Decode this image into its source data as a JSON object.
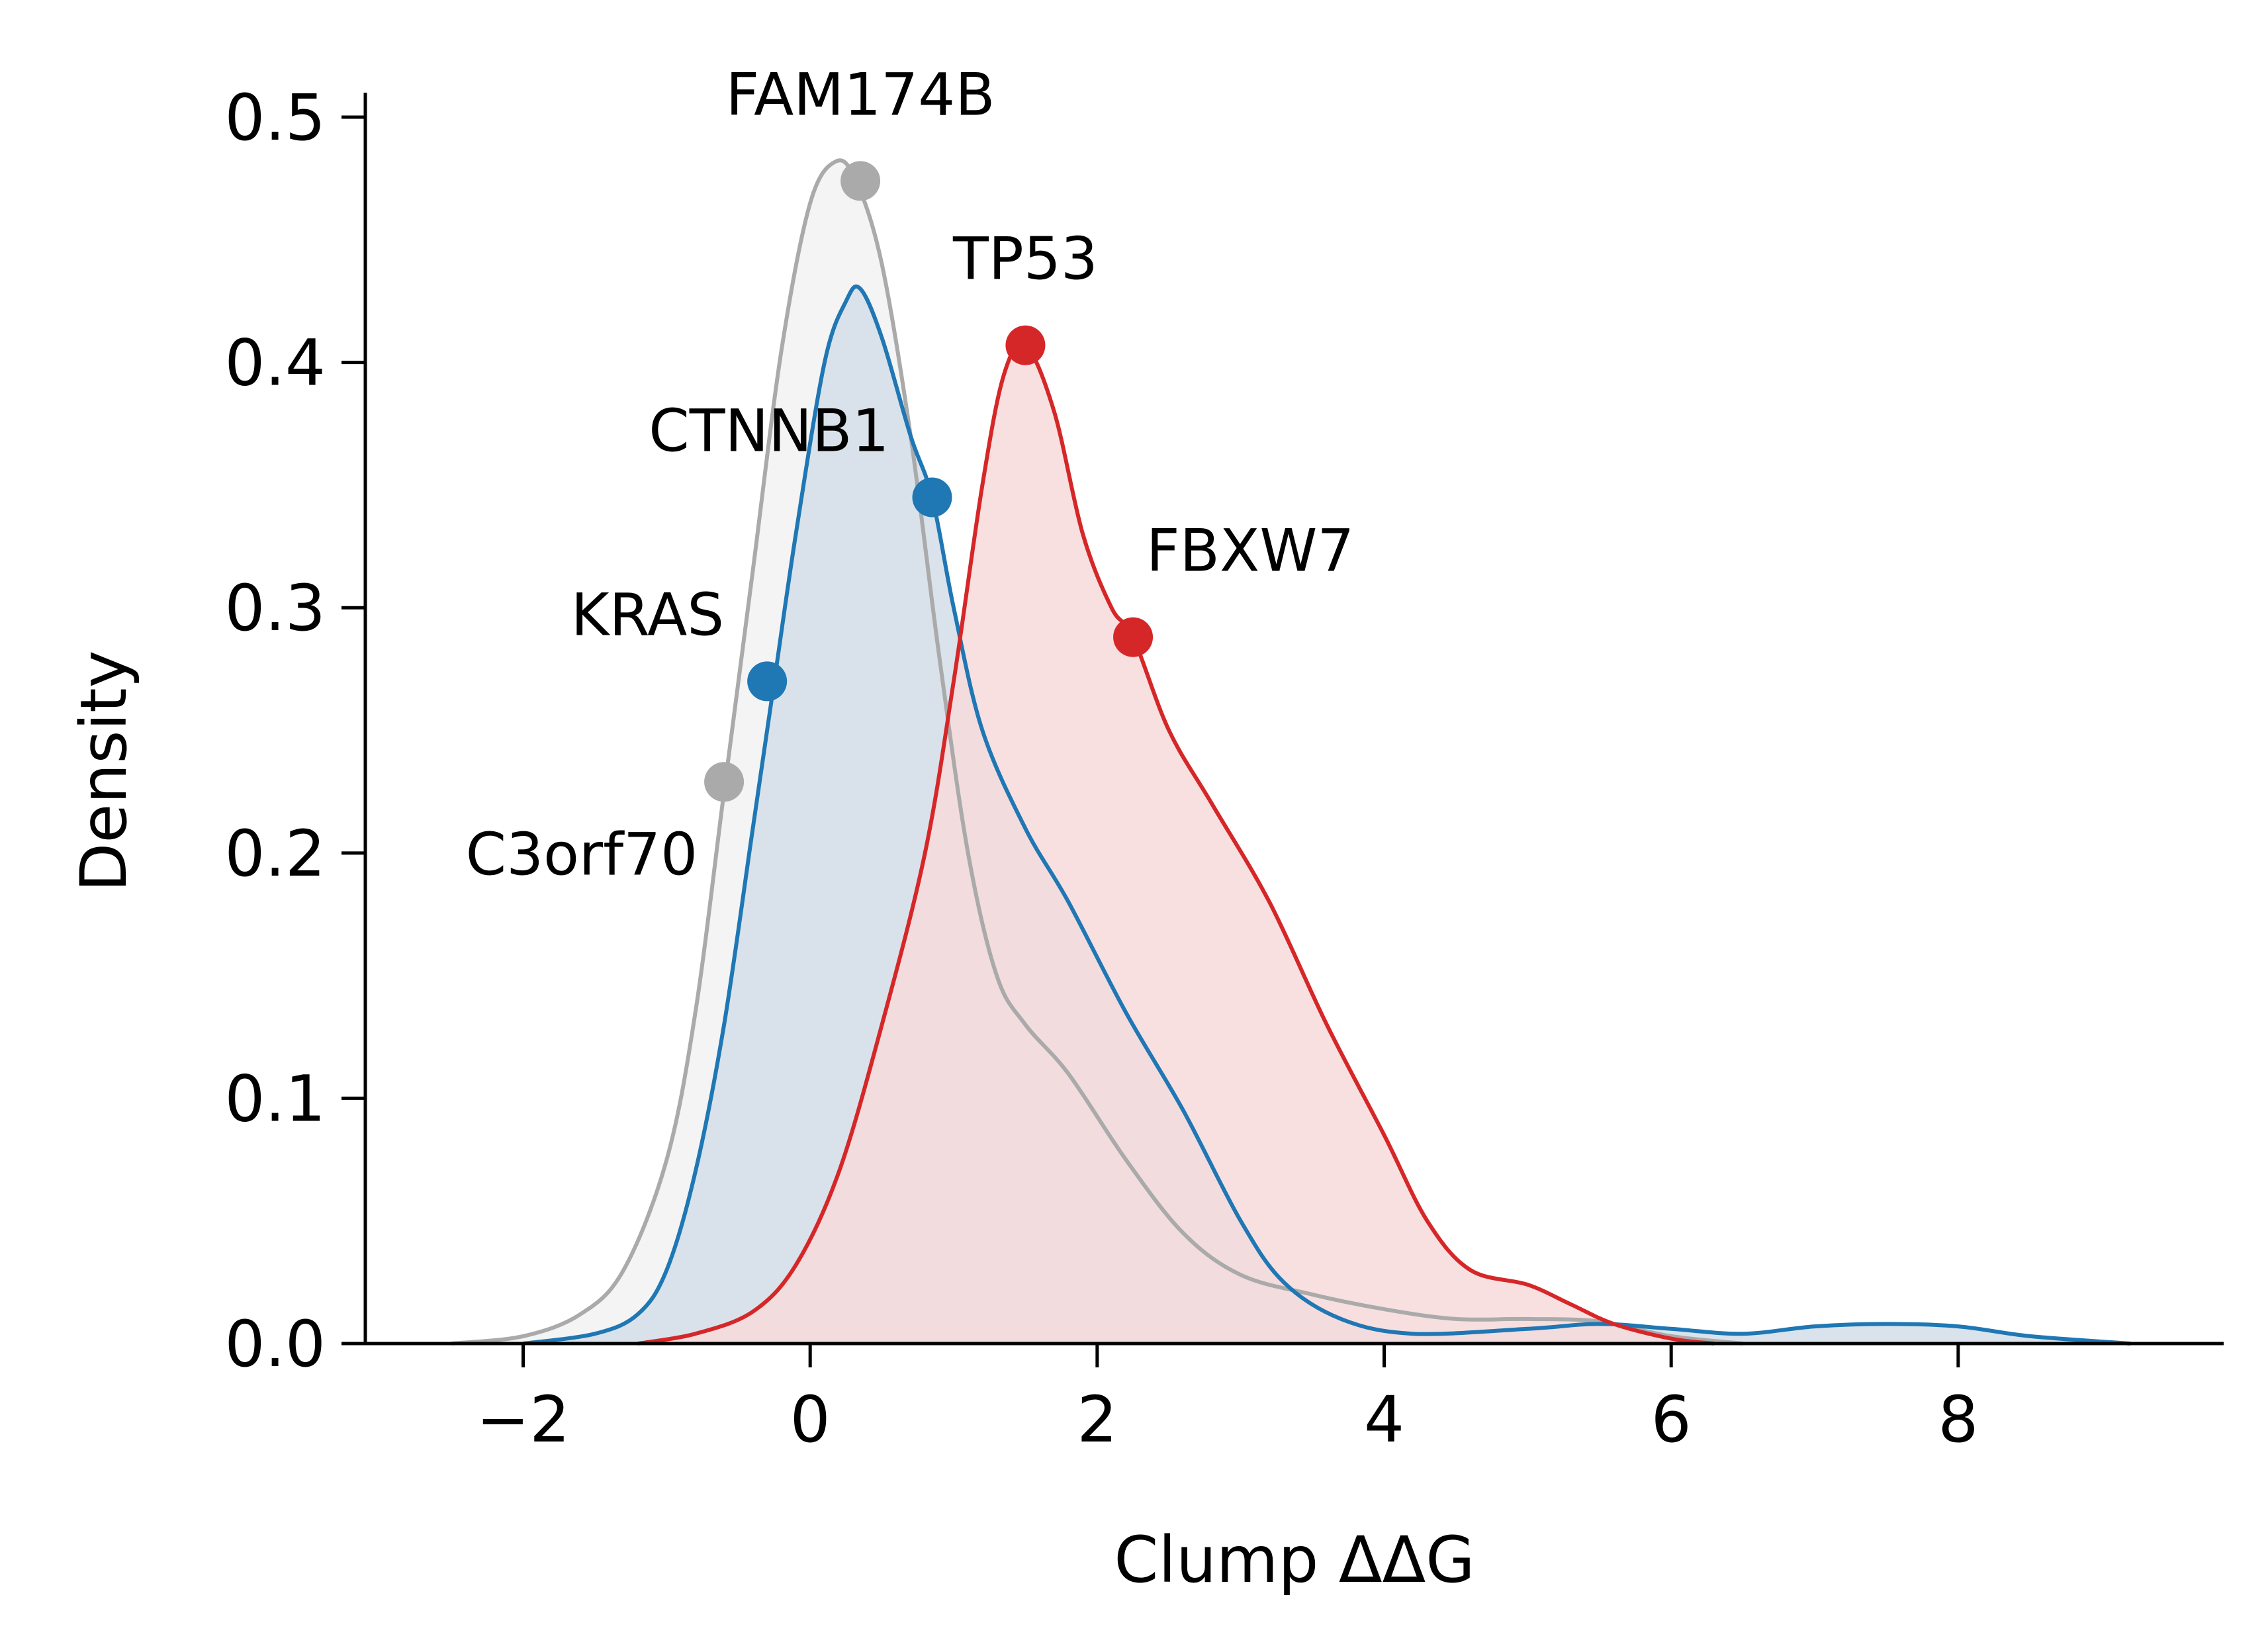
{
  "chart_data": {
    "type": "area",
    "xlabel": "Clump ΔΔG",
    "ylabel": "Density",
    "xlim": [
      -3.1,
      9.85
    ],
    "ylim": [
      0,
      0.51
    ],
    "x_ticks": [
      -2,
      0,
      2,
      4,
      6,
      8
    ],
    "x_tick_labels": [
      "−2",
      "0",
      "2",
      "4",
      "6",
      "8"
    ],
    "y_ticks": [
      0.0,
      0.1,
      0.2,
      0.3,
      0.4,
      0.5
    ],
    "y_tick_labels": [
      "0.0",
      "0.1",
      "0.2",
      "0.3",
      "0.4",
      "0.5"
    ],
    "grid": false,
    "series": [
      {
        "color": "#aaaaaa",
        "fill": "#f2f2f2",
        "points": [
          [
            -2.5,
            0.0
          ],
          [
            -2.0,
            0.003
          ],
          [
            -1.6,
            0.012
          ],
          [
            -1.3,
            0.03
          ],
          [
            -1.0,
            0.075
          ],
          [
            -0.8,
            0.135
          ],
          [
            -0.6,
            0.225
          ],
          [
            -0.4,
            0.315
          ],
          [
            -0.2,
            0.405
          ],
          [
            0.0,
            0.465
          ],
          [
            0.18,
            0.482
          ],
          [
            0.32,
            0.474
          ],
          [
            0.5,
            0.44
          ],
          [
            0.7,
            0.37
          ],
          [
            0.9,
            0.28
          ],
          [
            1.1,
            0.2
          ],
          [
            1.3,
            0.15
          ],
          [
            1.5,
            0.13
          ],
          [
            1.8,
            0.11
          ],
          [
            2.2,
            0.075
          ],
          [
            2.6,
            0.045
          ],
          [
            3.0,
            0.028
          ],
          [
            3.5,
            0.02
          ],
          [
            4.0,
            0.014
          ],
          [
            4.5,
            0.01
          ],
          [
            5.0,
            0.01
          ],
          [
            5.5,
            0.009
          ],
          [
            6.0,
            0.003
          ],
          [
            6.5,
            0.0
          ]
        ]
      },
      {
        "color": "#1f77b4",
        "fill": "#d3dee8",
        "points": [
          [
            -2.0,
            0.0
          ],
          [
            -1.5,
            0.004
          ],
          [
            -1.2,
            0.012
          ],
          [
            -1.0,
            0.03
          ],
          [
            -0.8,
            0.07
          ],
          [
            -0.6,
            0.13
          ],
          [
            -0.4,
            0.21
          ],
          [
            -0.25,
            0.27
          ],
          [
            -0.1,
            0.33
          ],
          [
            0.1,
            0.4
          ],
          [
            0.25,
            0.425
          ],
          [
            0.35,
            0.43
          ],
          [
            0.5,
            0.41
          ],
          [
            0.7,
            0.37
          ],
          [
            0.85,
            0.345
          ],
          [
            1.0,
            0.3
          ],
          [
            1.2,
            0.25
          ],
          [
            1.5,
            0.21
          ],
          [
            1.8,
            0.18
          ],
          [
            2.2,
            0.135
          ],
          [
            2.6,
            0.095
          ],
          [
            3.0,
            0.05
          ],
          [
            3.3,
            0.025
          ],
          [
            3.7,
            0.01
          ],
          [
            4.2,
            0.004
          ],
          [
            5.0,
            0.006
          ],
          [
            5.5,
            0.008
          ],
          [
            6.0,
            0.006
          ],
          [
            6.5,
            0.004
          ],
          [
            7.0,
            0.007
          ],
          [
            7.5,
            0.008
          ],
          [
            8.0,
            0.007
          ],
          [
            8.5,
            0.003
          ],
          [
            9.2,
            0.0
          ]
        ]
      },
      {
        "color": "#d62728",
        "fill": "#f7dadc",
        "points": [
          [
            -1.2,
            0.0
          ],
          [
            -0.8,
            0.004
          ],
          [
            -0.4,
            0.013
          ],
          [
            -0.1,
            0.032
          ],
          [
            0.2,
            0.07
          ],
          [
            0.5,
            0.13
          ],
          [
            0.8,
            0.2
          ],
          [
            1.0,
            0.27
          ],
          [
            1.2,
            0.35
          ],
          [
            1.35,
            0.395
          ],
          [
            1.5,
            0.407
          ],
          [
            1.7,
            0.38
          ],
          [
            1.9,
            0.33
          ],
          [
            2.1,
            0.3
          ],
          [
            2.25,
            0.288
          ],
          [
            2.5,
            0.25
          ],
          [
            2.8,
            0.22
          ],
          [
            3.2,
            0.18
          ],
          [
            3.6,
            0.13
          ],
          [
            4.0,
            0.085
          ],
          [
            4.3,
            0.05
          ],
          [
            4.6,
            0.03
          ],
          [
            5.0,
            0.024
          ],
          [
            5.3,
            0.016
          ],
          [
            5.6,
            0.008
          ],
          [
            6.0,
            0.002
          ],
          [
            6.3,
            0.0
          ]
        ]
      }
    ],
    "highlighted_points": [
      {
        "label": "FAM174B",
        "x": 0.35,
        "y": 0.474,
        "color": "#aaaaaa",
        "label_pos": "above"
      },
      {
        "label": "C3orf70",
        "x": -0.6,
        "y": 0.229,
        "color": "#aaaaaa",
        "label_pos": "below-left"
      },
      {
        "label": "CTNNB1",
        "x": 0.85,
        "y": 0.345,
        "color": "#1f77b4",
        "label_pos": "upper-left"
      },
      {
        "label": "KRAS",
        "x": -0.3,
        "y": 0.27,
        "color": "#1f77b4",
        "label_pos": "upper-left"
      },
      {
        "label": "TP53",
        "x": 1.5,
        "y": 0.407,
        "color": "#d62728",
        "label_pos": "above"
      },
      {
        "label": "FBXW7",
        "x": 2.25,
        "y": 0.288,
        "color": "#d62728",
        "label_pos": "upper-right"
      }
    ]
  }
}
